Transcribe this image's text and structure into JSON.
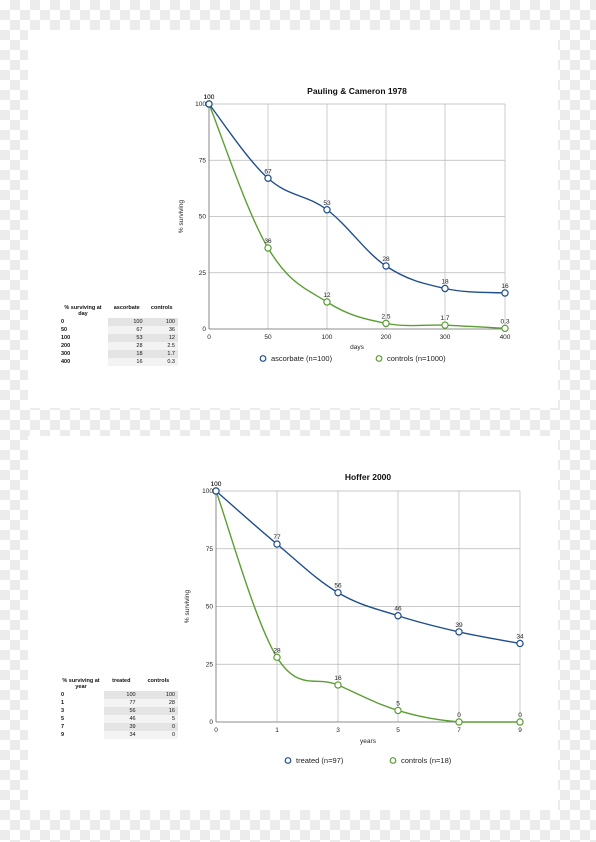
{
  "chart_data": [
    {
      "type": "line",
      "title": "Pauling & Cameron 1978",
      "xlabel": "days",
      "ylabel": "% surviving",
      "x": [
        0,
        50,
        100,
        200,
        300,
        400
      ],
      "x_ticks": [
        "0",
        "50",
        "100",
        "200",
        "300",
        "400"
      ],
      "y_ticks": [
        "0",
        "25",
        "50",
        "75",
        "100"
      ],
      "ylim": [
        0,
        100
      ],
      "grid": true,
      "legend_position": "bottom",
      "series": [
        {
          "name": "ascorbate (n=100)",
          "color": "#1f4e8c",
          "values": [
            100,
            67,
            53,
            28,
            18,
            16
          ],
          "labels": [
            "100",
            "67",
            "53",
            "28",
            "18",
            "16"
          ]
        },
        {
          "name": "controls (n=1000)",
          "color": "#5a9e32",
          "values": [
            100,
            36,
            12,
            2.5,
            1.7,
            0.3
          ],
          "labels": [
            "100",
            "36",
            "12",
            "2.5",
            "1.7",
            "0.3"
          ]
        }
      ],
      "table": {
        "headers": [
          "% surviving at day",
          "ascorbate",
          "controls"
        ],
        "rows": [
          [
            "0",
            "100",
            "100"
          ],
          [
            "50",
            "67",
            "36"
          ],
          [
            "100",
            "53",
            "12"
          ],
          [
            "200",
            "28",
            "2.5"
          ],
          [
            "300",
            "18",
            "1.7"
          ],
          [
            "400",
            "16",
            "0.3"
          ]
        ]
      }
    },
    {
      "type": "line",
      "title": "Hoffer 2000",
      "xlabel": "years",
      "ylabel": "% surviving",
      "x": [
        0,
        1,
        3,
        5,
        7,
        9
      ],
      "x_ticks": [
        "0",
        "1",
        "3",
        "5",
        "7",
        "9"
      ],
      "y_ticks": [
        "0",
        "25",
        "50",
        "75",
        "100"
      ],
      "ylim": [
        0,
        100
      ],
      "grid": true,
      "legend_position": "bottom",
      "series": [
        {
          "name": "treated (n=97)",
          "color": "#1f4e8c",
          "values": [
            100,
            77,
            56,
            46,
            39,
            34
          ],
          "labels": [
            "100",
            "77",
            "56",
            "46",
            "39",
            "34"
          ]
        },
        {
          "name": "controls (n=18)",
          "color": "#5a9e32",
          "values": [
            100,
            28,
            16,
            5,
            0,
            0
          ],
          "labels": [
            "100",
            "28",
            "16",
            "5",
            "0",
            "0"
          ]
        }
      ],
      "table": {
        "headers": [
          "% surviving at year",
          "treated",
          "controls"
        ],
        "rows": [
          [
            "0",
            "100",
            "100"
          ],
          [
            "1",
            "77",
            "28"
          ],
          [
            "3",
            "56",
            "16"
          ],
          [
            "5",
            "46",
            "5"
          ],
          [
            "7",
            "39",
            "0"
          ],
          [
            "9",
            "34",
            "0"
          ]
        ]
      }
    }
  ]
}
